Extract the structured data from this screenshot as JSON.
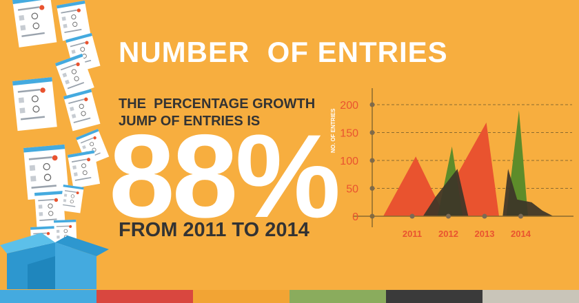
{
  "title": "NUMBER  OF ENTRIES",
  "subtitle_line1": "THE  PERCENTAGE GROWTH",
  "subtitle_line2": "JUMP OF ENTRIES IS",
  "headline_value": "88%",
  "range_text": "FROM 2011 TO 2014",
  "colors": {
    "background": "#f7ae3f",
    "series_red": "#e9532f",
    "series_green": "#5d8c2a",
    "series_dark": "#3d3628",
    "text_dark": "#333333",
    "axis_labels": "#e9532f",
    "stripes": [
      "#44aadf",
      "#d9473f",
      "#f2a434",
      "#8aac5d",
      "#3a3a3a",
      "#c9c5b9"
    ]
  },
  "chart_data": {
    "type": "area",
    "ylabel": "NO. OF ENTRIES",
    "xlabel": "",
    "categories": [
      "2011",
      "2012",
      "2013",
      "2014"
    ],
    "x_tick_positions": [
      2011,
      2012,
      2013,
      2014
    ],
    "yticks": [
      0,
      50,
      100,
      150,
      200
    ],
    "ylim": [
      0,
      210
    ],
    "xlim": [
      2010.0,
      2015.0
    ],
    "grid": "horizontal dashed",
    "series": [
      {
        "color": "red",
        "x": [
          2010.2,
          2011.1,
          2011.9
        ],
        "values": [
          0,
          107,
          0
        ]
      },
      {
        "color": "red",
        "x": [
          2011.6,
          2013.05,
          2013.4
        ],
        "values": [
          0,
          168,
          0
        ]
      },
      {
        "color": "green",
        "x": [
          2011.7,
          2012.1,
          2012.4
        ],
        "values": [
          0,
          125,
          0
        ]
      },
      {
        "color": "green",
        "x": [
          2013.6,
          2013.95,
          2014.2
        ],
        "values": [
          0,
          190,
          0
        ]
      },
      {
        "color": "dark",
        "x": [
          2011.3,
          2011.65,
          2012.25,
          2012.55
        ],
        "values": [
          0,
          35,
          85,
          0
        ]
      },
      {
        "color": "dark",
        "x": [
          2013.5,
          2013.65,
          2013.9,
          2014.3,
          2014.6,
          2014.9
        ],
        "values": [
          0,
          85,
          30,
          25,
          10,
          0
        ]
      }
    ]
  }
}
